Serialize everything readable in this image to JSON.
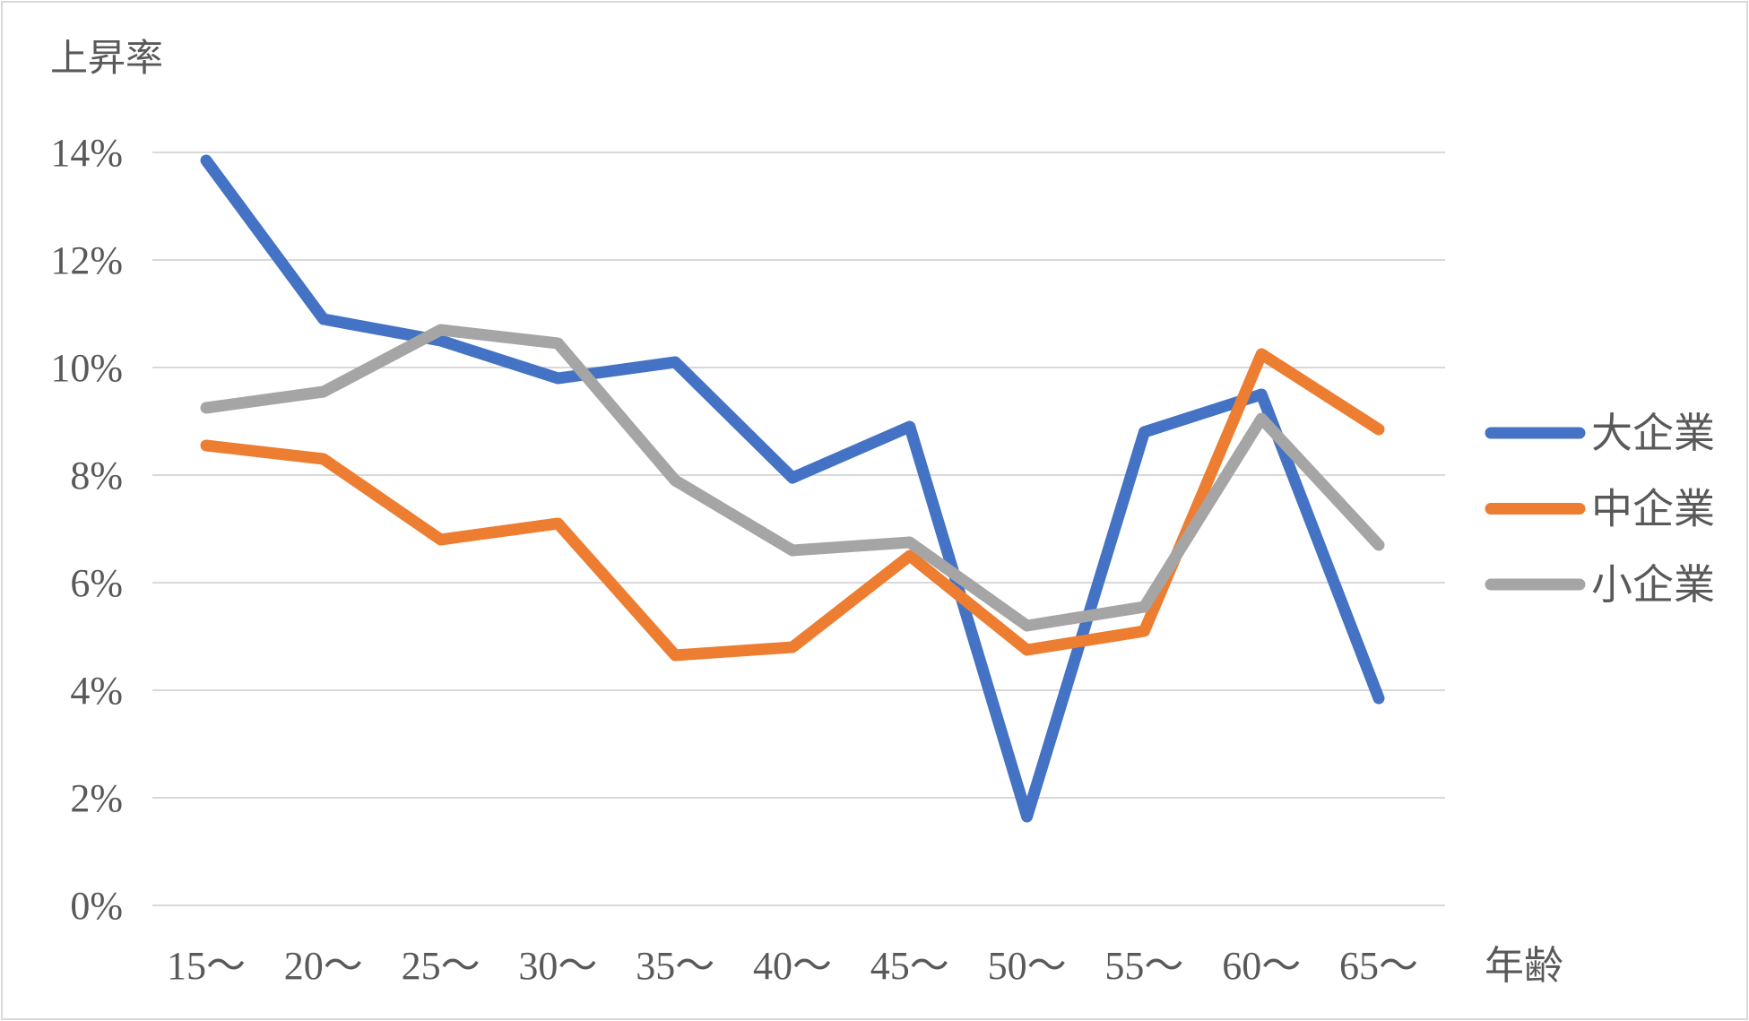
{
  "chart_data": {
    "type": "line",
    "title": "上昇率",
    "xlabel": "年齢",
    "ylabel": "",
    "categories": [
      "15〜",
      "20〜",
      "25〜",
      "30〜",
      "35〜",
      "40〜",
      "45〜",
      "50〜",
      "55〜",
      "60〜",
      "65〜"
    ],
    "series": [
      {
        "name": "大企業",
        "color": "#4472C4",
        "values": [
          13.85,
          10.9,
          10.5,
          9.8,
          10.1,
          7.95,
          8.9,
          1.65,
          8.8,
          9.5,
          3.85
        ]
      },
      {
        "name": "中企業",
        "color": "#ED7D31",
        "values": [
          8.55,
          8.3,
          6.8,
          7.1,
          4.65,
          4.8,
          6.5,
          4.75,
          5.1,
          10.25,
          8.85
        ]
      },
      {
        "name": "小企業",
        "color": "#A5A5A5",
        "values": [
          9.25,
          9.55,
          10.7,
          10.45,
          7.9,
          6.6,
          6.75,
          5.2,
          5.55,
          9.05,
          6.7
        ]
      }
    ],
    "y_axis": {
      "min": 0,
      "max": 14,
      "step": 2,
      "tick_labels": [
        "0%",
        "2%",
        "4%",
        "6%",
        "8%",
        "10%",
        "12%",
        "14%"
      ]
    },
    "legend": {
      "position": "right",
      "items": [
        "大企業",
        "中企業",
        "小企業"
      ]
    },
    "grid": "horizontal-only",
    "colors": {
      "grid": "#D9D9D9",
      "border": "#D9D9D9",
      "text": "#595959",
      "background": "#FFFFFF"
    }
  }
}
